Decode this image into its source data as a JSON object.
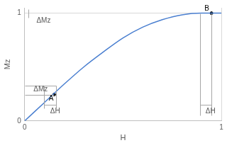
{
  "chart_data": {
    "type": "line",
    "x_label": "H",
    "y_label": "Mz",
    "x": [
      0,
      0.1,
      0.2,
      0.3,
      0.4,
      0.5,
      0.6,
      0.7,
      0.8,
      0.9,
      1.0
    ],
    "series": [
      {
        "color": "#4a7fd0",
        "values": [
          0,
          0.17,
          0.34,
          0.5,
          0.64,
          0.77,
          0.87,
          0.94,
          0.985,
          1.0,
          1.0
        ]
      }
    ],
    "points": [
      {
        "label": "A",
        "x": 0.15,
        "y": 0.245
      },
      {
        "label": "B",
        "x": 0.95,
        "y": 1.0
      }
    ],
    "annotations": [
      {
        "text": "ΔMz",
        "x": 0.06,
        "y": 0.93
      },
      {
        "text": "ΔMz",
        "x": 0.045,
        "y": 0.29
      },
      {
        "text": "ΔH",
        "x": 0.13,
        "y": 0.09
      },
      {
        "text": "ΔH",
        "x": 0.92,
        "y": 0.09
      }
    ],
    "guides": [
      [
        [
          0.02,
          0.96
        ],
        [
          0.02,
          1.04
        ]
      ],
      [
        [
          0,
          0.33
        ],
        [
          0.16,
          0.33
        ]
      ],
      [
        [
          0,
          0.245
        ],
        [
          0.15,
          0.245
        ]
      ],
      [
        [
          0.1,
          0.33
        ],
        [
          0.1,
          0.12
        ]
      ],
      [
        [
          0.16,
          0.33
        ],
        [
          0.16,
          0.12
        ]
      ],
      [
        [
          0.1,
          0.15
        ],
        [
          0.16,
          0.15
        ]
      ],
      [
        [
          0.89,
          1.0
        ],
        [
          0.89,
          0.05
        ]
      ],
      [
        [
          0.95,
          1.0
        ],
        [
          0.95,
          0.05
        ]
      ],
      [
        [
          0.89,
          0.15
        ],
        [
          0.95,
          0.15
        ]
      ]
    ],
    "xlim": [
      0,
      1
    ],
    "ylim": [
      0,
      1.05
    ],
    "xticks": [
      0,
      1
    ],
    "yticks": [
      0,
      1
    ],
    "grid": true
  }
}
